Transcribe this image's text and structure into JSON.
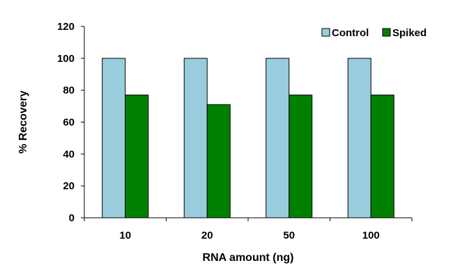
{
  "chart_data": {
    "type": "bar",
    "title": "",
    "xlabel": "RNA amount (ng)",
    "ylabel": "% Recovery",
    "categories": [
      "10",
      "20",
      "50",
      "100"
    ],
    "series": [
      {
        "name": "Control",
        "values": [
          100,
          100,
          100,
          100
        ],
        "color": "#99CCDD"
      },
      {
        "name": "Spiked",
        "values": [
          77,
          71,
          77,
          77
        ],
        "color": "#008000"
      }
    ],
    "ylim": [
      0,
      120
    ],
    "yticks": [
      0,
      20,
      40,
      60,
      80,
      100,
      120
    ],
    "grid": false,
    "legend_position": "top-right"
  }
}
